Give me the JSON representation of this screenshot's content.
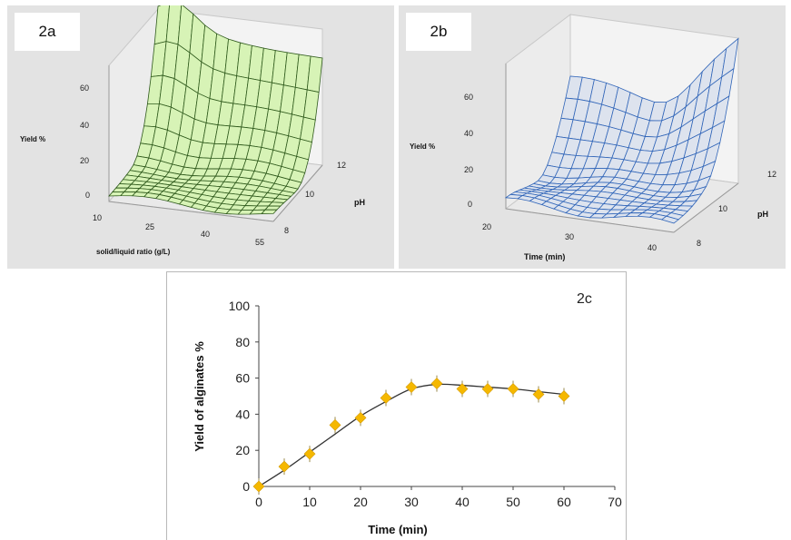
{
  "chart_data": [
    {
      "type": "surface",
      "panel_label": "2a",
      "zlabel": "Yield %",
      "xlabel": "solid/liquid ratio (g/L)",
      "ylabel": "pH",
      "z_ticks": [
        "0",
        "20",
        "40",
        "60"
      ],
      "x_ticks": [
        "10",
        "25",
        "40",
        "55"
      ],
      "y_ticks": [
        "8",
        "10",
        "12"
      ],
      "colors": {
        "fill": "#d7f3b6",
        "line": "#2f5a1c"
      }
    },
    {
      "type": "surface",
      "panel_label": "2b",
      "zlabel": "Yield %",
      "xlabel": "Time (min)",
      "ylabel": "pH",
      "z_ticks": [
        "0",
        "20",
        "40",
        "60"
      ],
      "x_ticks": [
        "20",
        "30",
        "40"
      ],
      "y_ticks": [
        "8",
        "10",
        "12"
      ],
      "colors": {
        "fill": "#dde3ee",
        "line": "#2f64b8"
      }
    },
    {
      "type": "line",
      "panel_label": "2c",
      "xlabel": "Time (min)",
      "ylabel": "Yield of alginates %",
      "xlim": [
        0,
        70
      ],
      "ylim": [
        0,
        100
      ],
      "x_ticks": [
        "0",
        "10",
        "20",
        "30",
        "40",
        "50",
        "60",
        "70"
      ],
      "y_ticks": [
        "0",
        "20",
        "40",
        "60",
        "80",
        "100"
      ],
      "x": [
        0,
        5,
        10,
        15,
        20,
        25,
        30,
        35,
        40,
        45,
        50,
        55,
        60
      ],
      "y": [
        0,
        11,
        18,
        34,
        38,
        49,
        55,
        57,
        54,
        54,
        54,
        51,
        50
      ],
      "fit_x": [
        0,
        5,
        10,
        15,
        20,
        25,
        30,
        35,
        40,
        45,
        50,
        55,
        60
      ],
      "fit_y": [
        0,
        9,
        19,
        29,
        39,
        47,
        54,
        56.5,
        56,
        55,
        54,
        52.5,
        51
      ],
      "colors": {
        "marker": "#f5b800",
        "line": "#333333"
      }
    }
  ]
}
